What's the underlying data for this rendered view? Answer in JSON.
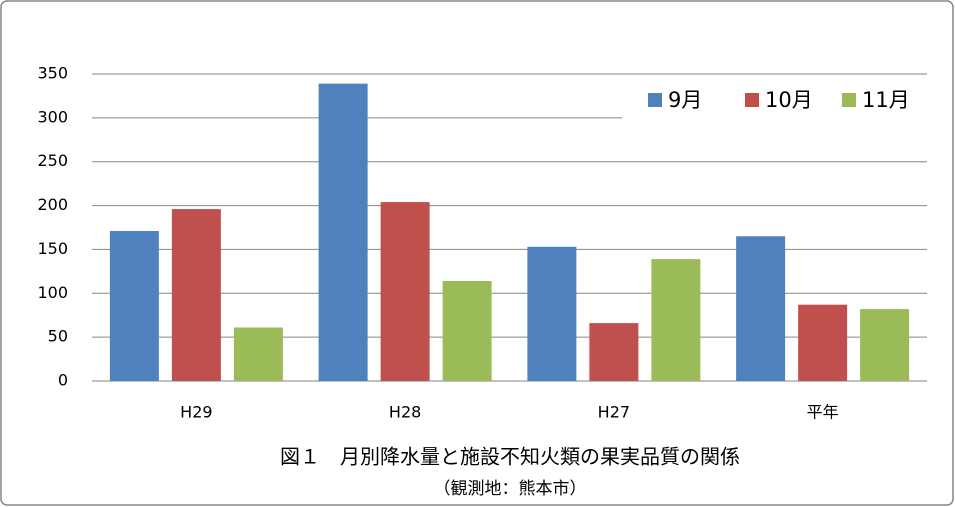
{
  "chart_data": {
    "type": "bar",
    "title": "図１　月別降水量と施設不知火類の果実品質の関係",
    "subtitle": "（観測地：熊本市）",
    "categories": [
      "H29",
      "H28",
      "H27",
      "平年"
    ],
    "series": [
      {
        "name": "9月",
        "color": "#4f81bd",
        "values": [
          171,
          339,
          153,
          165
        ]
      },
      {
        "name": "10月",
        "color": "#c0504d",
        "values": [
          196,
          204,
          66,
          87
        ]
      },
      {
        "name": "11月",
        "color": "#9bbb59",
        "values": [
          61,
          114,
          139,
          82
        ]
      }
    ],
    "ylim": [
      0,
      350
    ],
    "yticks": [
      0,
      50,
      100,
      150,
      200,
      250,
      300,
      350
    ],
    "grid": true,
    "legend": "top-right"
  }
}
